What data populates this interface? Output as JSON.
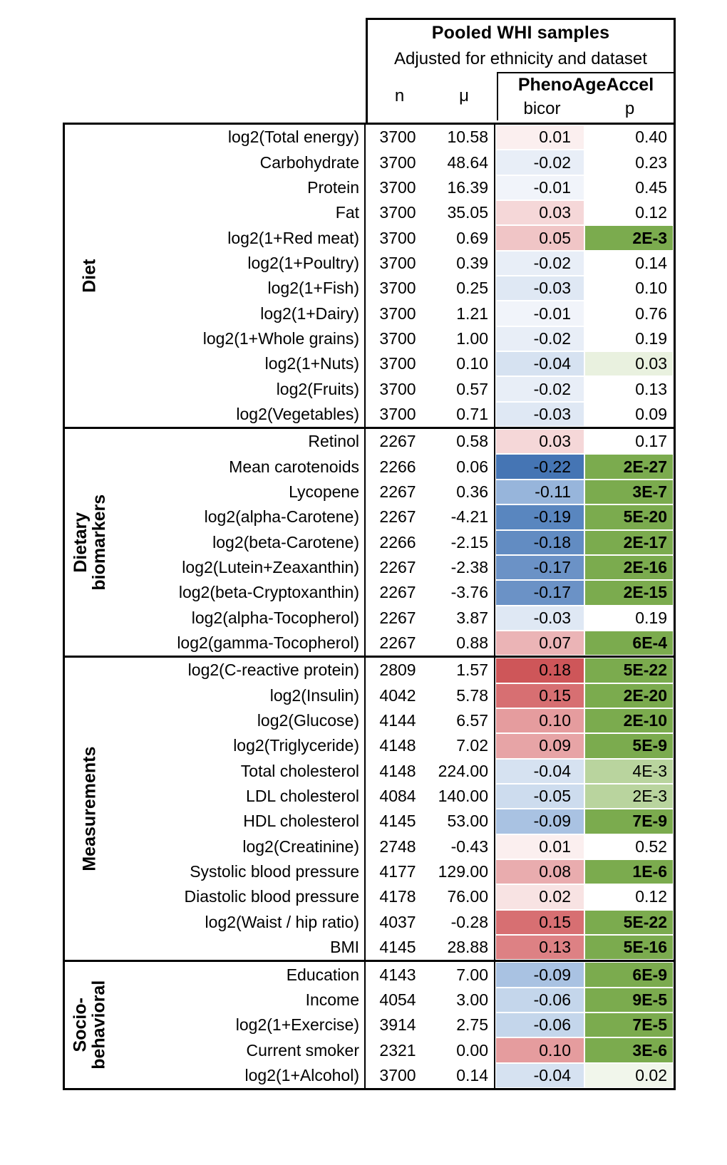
{
  "header": {
    "title": "Pooled WHI samples",
    "subtitle": "Adjusted for ethnicity and dataset",
    "col_n": "n",
    "col_mu": "μ",
    "col_group": "PhenoAgeAccel",
    "col_bicor": "bicor",
    "col_p": "p"
  },
  "colors": {
    "strong_green": "#7BAB4E",
    "medium_green": "#B9D49E",
    "light_green": "#E9F1DF",
    "strong_red": "#CE5659",
    "strong_blue": "#4575B4"
  },
  "groups": [
    {
      "label": "Diet",
      "rows": [
        {
          "label": "log2(Total energy)",
          "n": "3700",
          "mu": "10.58",
          "bicor": "0.01",
          "p": "0.40",
          "bicor_bg": "#FBEFEF",
          "p_bg": "#FFFFFF",
          "p_bold": false
        },
        {
          "label": "Carbohydrate",
          "n": "3700",
          "mu": "48.64",
          "bicor": "-0.02",
          "p": "0.23",
          "bicor_bg": "#E8EEF7",
          "p_bg": "#FFFFFF",
          "p_bold": false
        },
        {
          "label": "Protein",
          "n": "3700",
          "mu": "16.39",
          "bicor": "-0.01",
          "p": "0.45",
          "bicor_bg": "#F1F4FA",
          "p_bg": "#FFFFFF",
          "p_bold": false
        },
        {
          "label": "Fat",
          "n": "3700",
          "mu": "35.05",
          "bicor": "0.03",
          "p": "0.12",
          "bicor_bg": "#F5D7D8",
          "p_bg": "#FFFFFF",
          "p_bold": false
        },
        {
          "label": "log2(1+Red meat)",
          "n": "3700",
          "mu": "0.69",
          "bicor": "0.05",
          "p": "2E-3",
          "bicor_bg": "#F0C5C6",
          "p_bg": "#7BAB4E",
          "p_bold": true
        },
        {
          "label": "log2(1+Poultry)",
          "n": "3700",
          "mu": "0.39",
          "bicor": "-0.02",
          "p": "0.14",
          "bicor_bg": "#E8EEF7",
          "p_bg": "#FFFFFF",
          "p_bold": false
        },
        {
          "label": "log2(1+Fish)",
          "n": "3700",
          "mu": "0.25",
          "bicor": "-0.03",
          "p": "0.10",
          "bicor_bg": "#DFE8F4",
          "p_bg": "#FFFFFF",
          "p_bold": false
        },
        {
          "label": "log2(1+Dairy)",
          "n": "3700",
          "mu": "1.21",
          "bicor": "-0.01",
          "p": "0.76",
          "bicor_bg": "#F1F4FA",
          "p_bg": "#FFFFFF",
          "p_bold": false
        },
        {
          "label": "log2(1+Whole grains)",
          "n": "3700",
          "mu": "1.00",
          "bicor": "-0.02",
          "p": "0.19",
          "bicor_bg": "#E8EEF7",
          "p_bg": "#FFFFFF",
          "p_bold": false
        },
        {
          "label": "log2(1+Nuts)",
          "n": "3700",
          "mu": "0.10",
          "bicor": "-0.04",
          "p": "0.03",
          "bicor_bg": "#D6E2F1",
          "p_bg": "#E9F1DF",
          "p_bold": false
        },
        {
          "label": "log2(Fruits)",
          "n": "3700",
          "mu": "0.57",
          "bicor": "-0.02",
          "p": "0.13",
          "bicor_bg": "#E8EEF7",
          "p_bg": "#FFFFFF",
          "p_bold": false
        },
        {
          "label": "log2(Vegetables)",
          "n": "3700",
          "mu": "0.71",
          "bicor": "-0.03",
          "p": "0.09",
          "bicor_bg": "#DFE8F4",
          "p_bg": "#FFFFFF",
          "p_bold": false
        }
      ]
    },
    {
      "label": "Dietary biomarkers",
      "rows": [
        {
          "label": "Retinol",
          "n": "2267",
          "mu": "0.58",
          "bicor": "0.03",
          "p": "0.17",
          "bicor_bg": "#F5D7D8",
          "p_bg": "#FFFFFF",
          "p_bold": false
        },
        {
          "label": "Mean carotenoids",
          "n": "2266",
          "mu": "0.06",
          "bicor": "-0.22",
          "p": "2E-27",
          "bicor_bg": "#4575B4",
          "p_bg": "#7BAB4E",
          "p_bold": true
        },
        {
          "label": "Lycopene",
          "n": "2267",
          "mu": "0.36",
          "bicor": "-0.11",
          "p": "3E-7",
          "bicor_bg": "#97B5DB",
          "p_bg": "#7BAB4E",
          "p_bold": true
        },
        {
          "label": "log2(alpha-Carotene)",
          "n": "2267",
          "mu": "-4.21",
          "bicor": "-0.19",
          "p": "5E-20",
          "bicor_bg": "#5986BF",
          "p_bg": "#7BAB4E",
          "p_bold": true
        },
        {
          "label": "log2(beta-Carotene)",
          "n": "2266",
          "mu": "-2.15",
          "bicor": "-0.18",
          "p": "2E-17",
          "bicor_bg": "#628CC2",
          "p_bg": "#7BAB4E",
          "p_bold": true
        },
        {
          "label": "log2(Lutein+Zeaxanthin)",
          "n": "2267",
          "mu": "-2.38",
          "bicor": "-0.17",
          "p": "2E-16",
          "bicor_bg": "#6B92C6",
          "p_bg": "#7BAB4E",
          "p_bold": true
        },
        {
          "label": "log2(beta-Cryptoxanthin)",
          "n": "2267",
          "mu": "-3.76",
          "bicor": "-0.17",
          "p": "2E-15",
          "bicor_bg": "#6B92C6",
          "p_bg": "#7BAB4E",
          "p_bold": true
        },
        {
          "label": "log2(alpha-Tocopherol)",
          "n": "2267",
          "mu": "3.87",
          "bicor": "-0.03",
          "p": "0.19",
          "bicor_bg": "#DFE8F4",
          "p_bg": "#FFFFFF",
          "p_bold": false
        },
        {
          "label": "log2(gamma-Tocopherol)",
          "n": "2267",
          "mu": "0.88",
          "bicor": "0.07",
          "p": "6E-4",
          "bicor_bg": "#EBB4B6",
          "p_bg": "#7BAB4E",
          "p_bold": true
        }
      ]
    },
    {
      "label": "Measurements",
      "rows": [
        {
          "label": "log2(C-reactive protein)",
          "n": "2809",
          "mu": "1.57",
          "bicor": "0.18",
          "p": "5E-22",
          "bicor_bg": "#CE5659",
          "p_bg": "#7BAB4E",
          "p_bold": true
        },
        {
          "label": "log2(Insulin)",
          "n": "4042",
          "mu": "5.78",
          "bicor": "0.15",
          "p": "2E-20",
          "bicor_bg": "#D76F72",
          "p_bg": "#7BAB4E",
          "p_bold": true
        },
        {
          "label": "log2(Glucose)",
          "n": "4144",
          "mu": "6.57",
          "bicor": "0.10",
          "p": "2E-10",
          "bicor_bg": "#E59C9E",
          "p_bg": "#7BAB4E",
          "p_bold": true
        },
        {
          "label": "log2(Triglyceride)",
          "n": "4148",
          "mu": "7.02",
          "bicor": "0.09",
          "p": "5E-9",
          "bicor_bg": "#E7A4A6",
          "p_bg": "#7BAB4E",
          "p_bold": true
        },
        {
          "label": "Total cholesterol",
          "n": "4148",
          "mu": "224.00",
          "bicor": "-0.04",
          "p": "4E-3",
          "bicor_bg": "#D6E2F1",
          "p_bg": "#B9D49E",
          "p_bold": false
        },
        {
          "label": "LDL cholesterol",
          "n": "4084",
          "mu": "140.00",
          "bicor": "-0.05",
          "p": "2E-3",
          "bicor_bg": "#CDDCEE",
          "p_bg": "#B9D49E",
          "p_bold": false
        },
        {
          "label": "HDL cholesterol",
          "n": "4145",
          "mu": "53.00",
          "bicor": "-0.09",
          "p": "7E-9",
          "bicor_bg": "#A9C2E2",
          "p_bg": "#7BAB4E",
          "p_bold": true
        },
        {
          "label": "log2(Creatinine)",
          "n": "2748",
          "mu": "-0.43",
          "bicor": "0.01",
          "p": "0.52",
          "bicor_bg": "#FBEFEF",
          "p_bg": "#FFFFFF",
          "p_bold": false
        },
        {
          "label": "Systolic blood pressure",
          "n": "4177",
          "mu": "129.00",
          "bicor": "0.08",
          "p": "1E-6",
          "bicor_bg": "#E9ACAE",
          "p_bg": "#7BAB4E",
          "p_bold": true
        },
        {
          "label": "Diastolic blood pressure",
          "n": "4178",
          "mu": "76.00",
          "bicor": "0.02",
          "p": "0.12",
          "bicor_bg": "#F8E3E3",
          "p_bg": "#FFFFFF",
          "p_bold": false
        },
        {
          "label": "log2(Waist / hip ratio)",
          "n": "4037",
          "mu": "-0.28",
          "bicor": "0.15",
          "p": "5E-22",
          "bicor_bg": "#D76F72",
          "p_bg": "#7BAB4E",
          "p_bold": true
        },
        {
          "label": "BMI",
          "n": "4145",
          "mu": "28.88",
          "bicor": "0.13",
          "p": "5E-16",
          "bicor_bg": "#DD8184",
          "p_bg": "#7BAB4E",
          "p_bold": true
        }
      ]
    },
    {
      "label": "Socio-\nbehavioral",
      "rows": [
        {
          "label": "Education",
          "n": "4143",
          "mu": "7.00",
          "bicor": "-0.09",
          "p": "6E-9",
          "bicor_bg": "#A9C2E2",
          "p_bg": "#7BAB4E",
          "p_bold": true
        },
        {
          "label": "Income",
          "n": "4054",
          "mu": "3.00",
          "bicor": "-0.06",
          "p": "9E-5",
          "bicor_bg": "#C4D6EB",
          "p_bg": "#7BAB4E",
          "p_bold": true
        },
        {
          "label": "log2(1+Exercise)",
          "n": "3914",
          "mu": "2.75",
          "bicor": "-0.06",
          "p": "7E-5",
          "bicor_bg": "#C4D6EB",
          "p_bg": "#7BAB4E",
          "p_bold": true
        },
        {
          "label": "Current smoker",
          "n": "2321",
          "mu": "0.00",
          "bicor": "0.10",
          "p": "3E-6",
          "bicor_bg": "#E59C9E",
          "p_bg": "#7BAB4E",
          "p_bold": true
        },
        {
          "label": "log2(1+Alcohol)",
          "n": "3700",
          "mu": "0.14",
          "bicor": "-0.04",
          "p": "0.02",
          "bicor_bg": "#D6E2F1",
          "p_bg": "#F1F6EB",
          "p_bold": false
        }
      ]
    }
  ]
}
